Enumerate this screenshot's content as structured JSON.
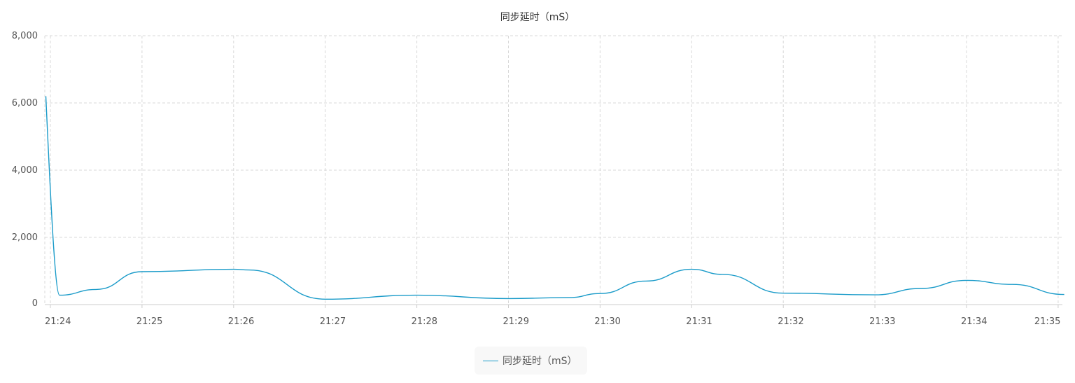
{
  "chart_data": {
    "type": "line",
    "title": "同步延时（mS）",
    "xlabel": "",
    "ylabel": "",
    "x": [
      "21:24",
      "21:25",
      "21:26",
      "21:27",
      "21:28",
      "21:29",
      "21:30",
      "21:31",
      "21:32",
      "21:33",
      "21:34",
      "21:35"
    ],
    "y_ticks": [
      "0",
      "2,000",
      "4,000",
      "6,000",
      "8,000"
    ],
    "ylim": [
      0,
      8000
    ],
    "grid": true,
    "legend": "bottom-center",
    "series": [
      {
        "name": "同步延时（mS）",
        "color": "#1a9bc9",
        "points": [
          {
            "x": "21:23:57",
            "y": 6200
          },
          {
            "x": "21:24:06",
            "y": 280
          },
          {
            "x": "21:24:30",
            "y": 450
          },
          {
            "x": "21:25",
            "y": 980
          },
          {
            "x": "21:26",
            "y": 1050
          },
          {
            "x": "21:26:10",
            "y": 1030
          },
          {
            "x": "21:27",
            "y": 160
          },
          {
            "x": "21:28",
            "y": 280
          },
          {
            "x": "21:29",
            "y": 180
          },
          {
            "x": "21:29:40",
            "y": 210
          },
          {
            "x": "21:30",
            "y": 330
          },
          {
            "x": "21:30:30",
            "y": 700
          },
          {
            "x": "21:31",
            "y": 1050
          },
          {
            "x": "21:31:20",
            "y": 900
          },
          {
            "x": "21:32",
            "y": 340
          },
          {
            "x": "21:33",
            "y": 290
          },
          {
            "x": "21:33:30",
            "y": 480
          },
          {
            "x": "21:34",
            "y": 720
          },
          {
            "x": "21:34:30",
            "y": 600
          },
          {
            "x": "21:35:04",
            "y": 300
          }
        ]
      }
    ]
  }
}
